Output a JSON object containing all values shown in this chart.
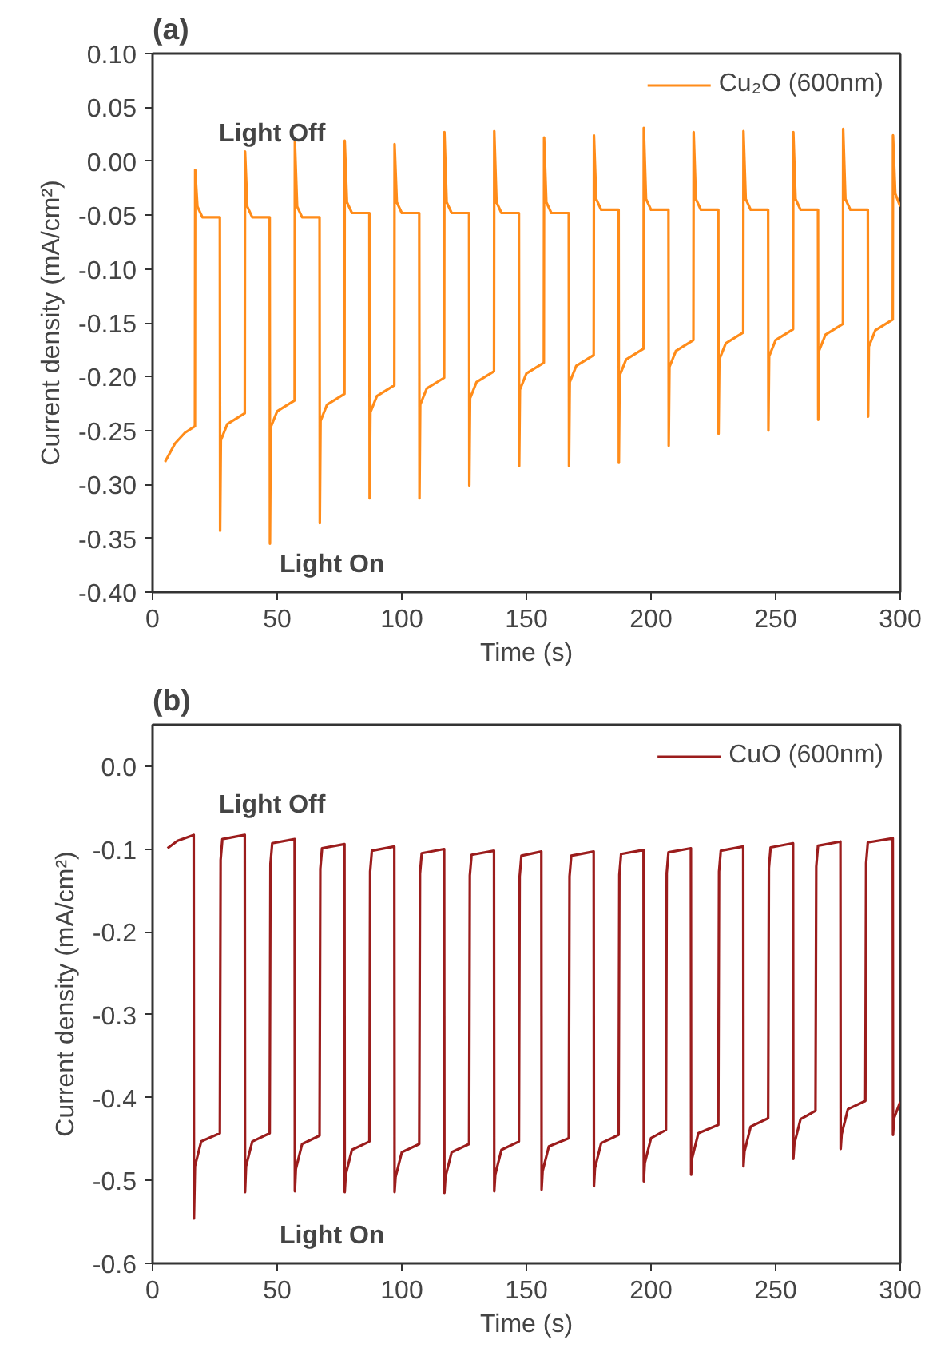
{
  "chart_data": [
    {
      "type": "line",
      "title": "(a)",
      "xlabel": "Time (s)",
      "ylabel": "Current density (mA/cm²)",
      "legend": "top right",
      "grid": false,
      "xlim": [
        0,
        300
      ],
      "xticks": [
        0,
        50,
        100,
        150,
        200,
        250,
        300
      ],
      "ylim": [
        -0.4,
        0.1
      ],
      "yticks": [
        {
          "value": -0.4,
          "label": "-0.40"
        },
        {
          "value": -0.35,
          "label": "-0.35"
        },
        {
          "value": -0.3,
          "label": "-0.30"
        },
        {
          "value": -0.25,
          "label": "-0.25"
        },
        {
          "value": -0.2,
          "label": "-0.20"
        },
        {
          "value": -0.15,
          "label": "-0.15"
        },
        {
          "value": -0.1,
          "label": "-0.10"
        },
        {
          "value": -0.05,
          "label": "-0.05"
        },
        {
          "value": 0,
          "label": "0.00"
        },
        {
          "value": 0.05,
          "label": "0.05"
        },
        {
          "value": 0.1,
          "label": "0.10"
        }
      ],
      "annotations": [
        "Light Off",
        "Light On"
      ],
      "series": [
        {
          "name": "Cu₂O (600nm)",
          "color": "#ff8c1a",
          "x": [
            5,
            9,
            13,
            17,
            17.1,
            18,
            20,
            27,
            27.1,
            27.4,
            30,
            37,
            37.1,
            38,
            40,
            47,
            47.1,
            47.4,
            50,
            57,
            57.1,
            58,
            60,
            67,
            67.1,
            67.4,
            70,
            77,
            77.1,
            78,
            80,
            87,
            87.1,
            87.4,
            90,
            97,
            97.1,
            98,
            100,
            107,
            107.1,
            107.4,
            110,
            117,
            117.1,
            118,
            120,
            127,
            127.1,
            127.4,
            130,
            137,
            137.1,
            138,
            140,
            147,
            147.1,
            147.4,
            150,
            157,
            157.1,
            158,
            160,
            167,
            167.1,
            167.4,
            170,
            177,
            177.1,
            178,
            180,
            187,
            187.1,
            187.4,
            190,
            197,
            197.1,
            198,
            200,
            207,
            207.1,
            207.4,
            210,
            217,
            217.1,
            218,
            220,
            227,
            227.1,
            227.4,
            230,
            237,
            237.1,
            238,
            240,
            247,
            247.1,
            247.4,
            250,
            257,
            257.1,
            258,
            260,
            267,
            267.1,
            267.4,
            270,
            277,
            277.1,
            278,
            280,
            287,
            287.1,
            287.4,
            290,
            297,
            297.1,
            298,
            300
          ],
          "values": [
            -0.279,
            -0.262,
            -0.252,
            -0.246,
            -0.008,
            -0.042,
            -0.052,
            -0.052,
            -0.343,
            -0.259,
            -0.244,
            -0.234,
            0.009,
            -0.042,
            -0.052,
            -0.052,
            -0.355,
            -0.247,
            -0.232,
            -0.222,
            0.018,
            -0.042,
            -0.052,
            -0.052,
            -0.336,
            -0.241,
            -0.226,
            -0.216,
            0.019,
            -0.038,
            -0.048,
            -0.048,
            -0.313,
            -0.233,
            -0.218,
            -0.208,
            0.016,
            -0.038,
            -0.048,
            -0.048,
            -0.313,
            -0.226,
            -0.211,
            -0.201,
            0.027,
            -0.038,
            -0.048,
            -0.048,
            -0.301,
            -0.22,
            -0.205,
            -0.195,
            0.028,
            -0.038,
            -0.048,
            -0.048,
            -0.283,
            -0.212,
            -0.197,
            -0.187,
            0.022,
            -0.038,
            -0.048,
            -0.048,
            -0.283,
            -0.205,
            -0.19,
            -0.18,
            0.024,
            -0.035,
            -0.045,
            -0.045,
            -0.28,
            -0.199,
            -0.184,
            -0.174,
            0.031,
            -0.035,
            -0.045,
            -0.045,
            -0.264,
            -0.191,
            -0.176,
            -0.166,
            0.027,
            -0.035,
            -0.045,
            -0.045,
            -0.253,
            -0.184,
            -0.169,
            -0.159,
            0.028,
            -0.035,
            -0.045,
            -0.045,
            -0.25,
            -0.181,
            -0.166,
            -0.156,
            0.027,
            -0.035,
            -0.045,
            -0.045,
            -0.24,
            -0.176,
            -0.161,
            -0.151,
            0.03,
            -0.035,
            -0.045,
            -0.045,
            -0.237,
            -0.172,
            -0.157,
            -0.147,
            0.024,
            -0.03,
            -0.042
          ]
        }
      ]
    },
    {
      "type": "line",
      "title": "(b)",
      "xlabel": "Time (s)",
      "ylabel": "Current density (mA/cm²)",
      "legend": "top right",
      "grid": false,
      "xlim": [
        0,
        300
      ],
      "xticks": [
        0,
        50,
        100,
        150,
        200,
        250,
        300
      ],
      "ylim": [
        -0.6,
        0.05
      ],
      "yticks": [
        {
          "value": -0.6,
          "label": "-0.6"
        },
        {
          "value": -0.5,
          "label": "-0.5"
        },
        {
          "value": -0.4,
          "label": "-0.4"
        },
        {
          "value": -0.3,
          "label": "-0.3"
        },
        {
          "value": -0.2,
          "label": "-0.2"
        },
        {
          "value": -0.1,
          "label": "-0.1"
        },
        {
          "value": 0,
          "label": "0.0"
        }
      ],
      "annotations": [
        "Light Off",
        "Light On"
      ],
      "series": [
        {
          "name": "CuO (600nm)",
          "color": "#9b1c1c",
          "x": [
            6,
            10,
            16.5,
            16.6,
            17,
            19.5,
            27,
            27.3,
            28,
            37,
            37.1,
            37.5,
            40,
            47,
            47.3,
            48,
            57,
            57.1,
            57.5,
            60,
            67,
            67.3,
            68,
            77,
            77.1,
            77.5,
            80,
            87,
            87.3,
            88,
            97,
            97.1,
            97.5,
            100,
            107,
            107.3,
            108,
            117,
            117.1,
            117.5,
            120,
            127,
            127.3,
            128,
            137,
            137.1,
            137.5,
            140,
            147,
            147.3,
            148,
            156,
            156.1,
            156.5,
            159,
            167,
            167.3,
            168,
            177,
            177.1,
            177.5,
            180,
            187,
            187.3,
            188,
            197,
            197.1,
            197.5,
            200,
            206,
            206.3,
            207,
            216,
            216.1,
            216.5,
            219,
            227,
            227.3,
            228,
            237,
            237.1,
            237.5,
            240,
            247,
            247.3,
            248,
            257,
            257.1,
            257.5,
            260,
            266,
            266.3,
            267,
            276,
            276.1,
            276.5,
            279,
            286,
            286.3,
            287,
            297,
            297.1,
            297.5,
            300
          ],
          "values": [
            -0.099,
            -0.09,
            -0.083,
            -0.546,
            -0.483,
            -0.453,
            -0.443,
            -0.113,
            -0.088,
            -0.083,
            -0.514,
            -0.483,
            -0.453,
            -0.443,
            -0.118,
            -0.093,
            -0.088,
            -0.513,
            -0.486,
            -0.456,
            -0.446,
            -0.124,
            -0.099,
            -0.094,
            -0.514,
            -0.493,
            -0.463,
            -0.453,
            -0.127,
            -0.102,
            -0.097,
            -0.514,
            -0.496,
            -0.466,
            -0.456,
            -0.13,
            -0.105,
            -0.1,
            -0.515,
            -0.496,
            -0.466,
            -0.456,
            -0.132,
            -0.107,
            -0.102,
            -0.513,
            -0.493,
            -0.463,
            -0.453,
            -0.133,
            -0.108,
            -0.103,
            -0.511,
            -0.489,
            -0.459,
            -0.449,
            -0.133,
            -0.108,
            -0.103,
            -0.507,
            -0.485,
            -0.455,
            -0.445,
            -0.131,
            -0.106,
            -0.101,
            -0.501,
            -0.479,
            -0.449,
            -0.439,
            -0.129,
            -0.104,
            -0.099,
            -0.493,
            -0.473,
            -0.443,
            -0.433,
            -0.127,
            -0.102,
            -0.097,
            -0.483,
            -0.465,
            -0.435,
            -0.425,
            -0.123,
            -0.098,
            -0.093,
            -0.474,
            -0.456,
            -0.426,
            -0.416,
            -0.121,
            -0.096,
            -0.091,
            -0.462,
            -0.444,
            -0.414,
            -0.404,
            -0.117,
            -0.092,
            -0.087,
            -0.445,
            -0.425,
            -0.405
          ]
        }
      ]
    }
  ]
}
